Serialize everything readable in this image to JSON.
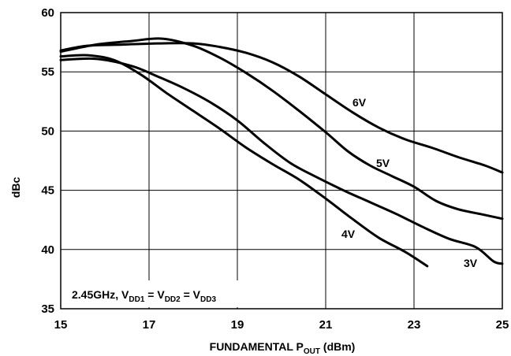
{
  "chart_data": {
    "type": "line",
    "title": "",
    "xlabel": "FUNDAMENTAL P",
    "xlabel_sub": "OUT",
    "xlabel_unit": " (dBm)",
    "ylabel": "dBc",
    "xlim": [
      15,
      25
    ],
    "ylim": [
      35,
      60
    ],
    "x_ticks": [
      "15",
      "17",
      "19",
      "21",
      "23",
      "25"
    ],
    "y_ticks": [
      "35",
      "40",
      "45",
      "50",
      "55",
      "60"
    ],
    "grid": true,
    "annotation": {
      "prefix": "2.45GHz, V",
      "sub1": "DD1",
      "eq1": " = V",
      "sub2": "DD2",
      "eq2": " = V",
      "sub3": "DD3"
    },
    "series": [
      {
        "name": "6V",
        "x": [
          15,
          15.6,
          16.4,
          17.2,
          18.0,
          18.6,
          19.2,
          19.8,
          20.4,
          21.0,
          21.6,
          22.2,
          22.8,
          23.4,
          24.0,
          24.6,
          25
        ],
        "y": [
          56.8,
          57.2,
          57.3,
          57.4,
          57.4,
          57.1,
          56.6,
          55.8,
          54.6,
          53.1,
          51.6,
          50.3,
          49.3,
          48.6,
          47.8,
          47.1,
          46.5
        ]
      },
      {
        "name": "5V",
        "x": [
          15,
          15.8,
          16.6,
          17.3,
          18.0,
          18.6,
          19.2,
          19.8,
          20.4,
          21.0,
          21.5,
          22.0,
          22.5,
          23.0,
          23.5,
          24.0,
          24.5,
          25
        ],
        "y": [
          56.7,
          57.3,
          57.6,
          57.8,
          57.2,
          56.2,
          54.9,
          53.4,
          51.7,
          49.9,
          48.3,
          47.1,
          46.2,
          45.3,
          44.1,
          43.4,
          43.0,
          42.6
        ]
      },
      {
        "name": "4V",
        "x": [
          15,
          15.6,
          16.2,
          16.8,
          17.4,
          18.0,
          18.6,
          19.2,
          19.8,
          20.4,
          21.0,
          21.6,
          22.2,
          22.8,
          23.3
        ],
        "y": [
          56.3,
          56.4,
          56.0,
          54.8,
          53.2,
          51.7,
          50.2,
          48.6,
          47.2,
          45.9,
          44.3,
          42.6,
          41.0,
          39.8,
          38.6
        ]
      },
      {
        "name": "3V",
        "x": [
          15,
          15.8,
          16.6,
          17.2,
          17.8,
          18.4,
          19.0,
          19.6,
          20.2,
          20.8,
          21.4,
          22.0,
          22.6,
          23.2,
          23.8,
          24.4,
          24.8,
          25
        ],
        "y": [
          56.0,
          56.1,
          55.5,
          54.6,
          53.6,
          52.4,
          50.9,
          49.0,
          47.3,
          46.1,
          45.0,
          44.0,
          43.0,
          41.9,
          40.9,
          40.2,
          39.0,
          38.8
        ]
      }
    ]
  }
}
